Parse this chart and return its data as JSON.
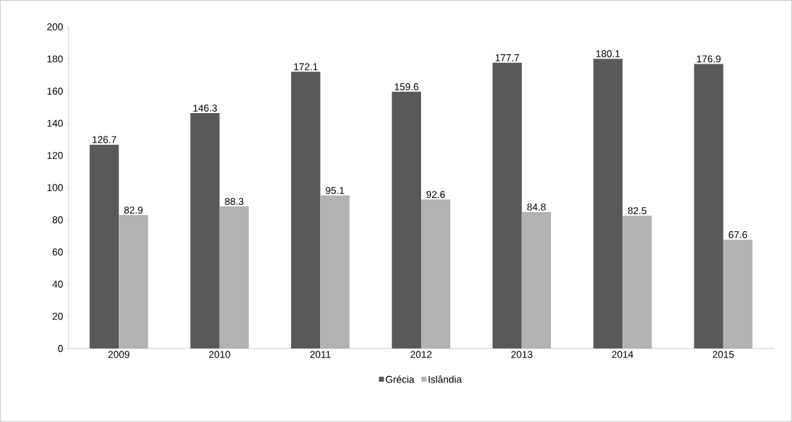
{
  "chart_data": {
    "type": "bar",
    "categories": [
      "2009",
      "2010",
      "2011",
      "2012",
      "2013",
      "2014",
      "2015"
    ],
    "series": [
      {
        "name": "Grécia",
        "color": "#595959",
        "values": [
          126.7,
          146.3,
          172.1,
          159.6,
          177.7,
          180.1,
          176.9
        ]
      },
      {
        "name": "Islândia",
        "color": "#b2b2b2",
        "values": [
          82.9,
          88.3,
          95.1,
          92.6,
          84.8,
          82.5,
          67.6
        ]
      }
    ],
    "ylim": [
      0,
      200
    ],
    "yticks": [
      0,
      20,
      40,
      60,
      80,
      100,
      120,
      140,
      160,
      180,
      200
    ],
    "data_labels": true,
    "legend": "bottom",
    "grid": false
  }
}
